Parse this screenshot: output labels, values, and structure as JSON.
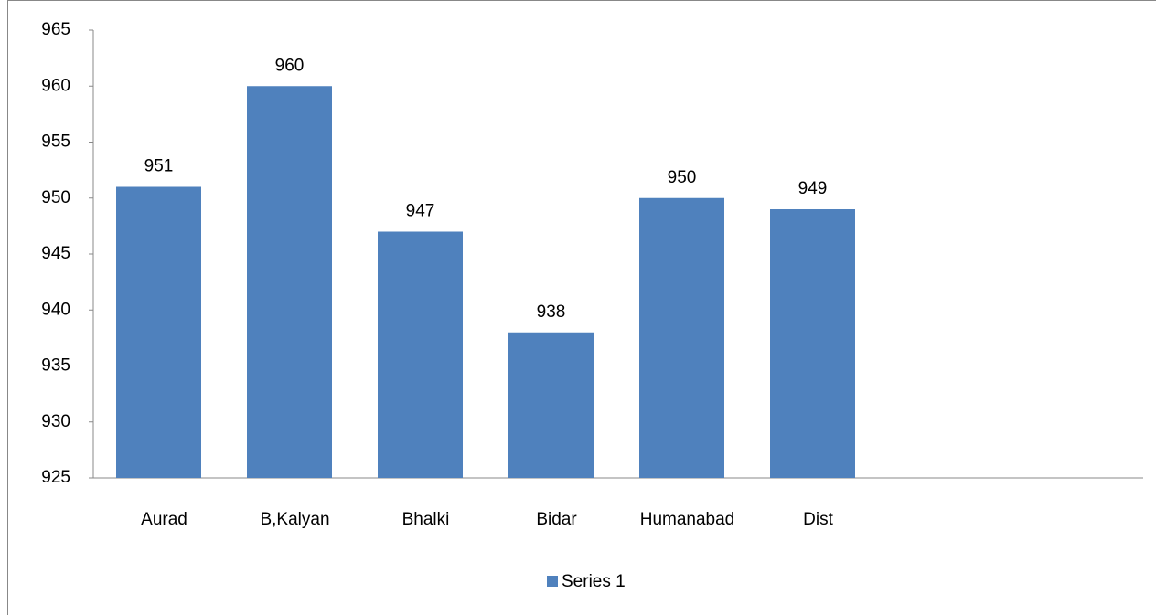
{
  "chart_data": {
    "type": "bar",
    "categories": [
      "Aurad",
      "B,Kalyan",
      "Bhalki",
      "Bidar",
      "Humanabad",
      "Dist"
    ],
    "series": [
      {
        "name": "Series 1",
        "color": "#4f81bd",
        "values": [
          951,
          960,
          947,
          938,
          950,
          949
        ]
      }
    ],
    "ylim": [
      925,
      965
    ],
    "yticks": [
      925,
      930,
      935,
      940,
      945,
      950,
      955,
      960,
      965
    ],
    "grid": false,
    "legend": "bottom"
  }
}
